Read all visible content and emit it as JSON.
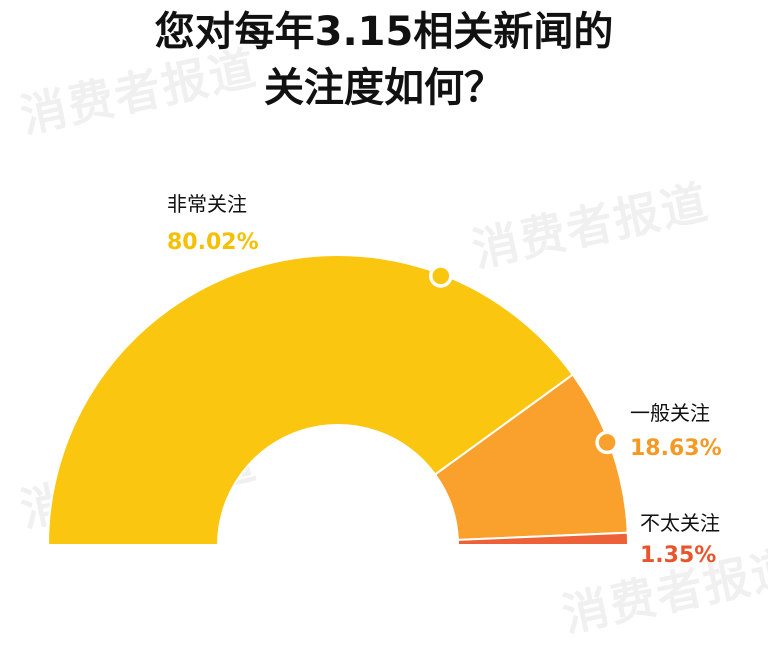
{
  "title": {
    "line1": "您对每年3.15相关新闻的",
    "line2": "关注度如何？"
  },
  "watermark": "消费者报道",
  "chart_data": {
    "type": "pie",
    "shape": "semi-donut",
    "title": "您对每年3.15相关新闻的关注度如何？",
    "unit": "%",
    "slices": [
      {
        "label": "非常关注",
        "value": 80.02,
        "display": "80.02%",
        "color": "#FBC60F",
        "label_color": "#F5C000"
      },
      {
        "label": "一般关注",
        "value": 18.63,
        "display": "18.63%",
        "color": "#F9A12C",
        "label_color": "#F49A24"
      },
      {
        "label": "不太关注",
        "value": 1.35,
        "display": "1.35%",
        "color": "#EE6138",
        "label_color": "#E8552C"
      }
    ]
  }
}
